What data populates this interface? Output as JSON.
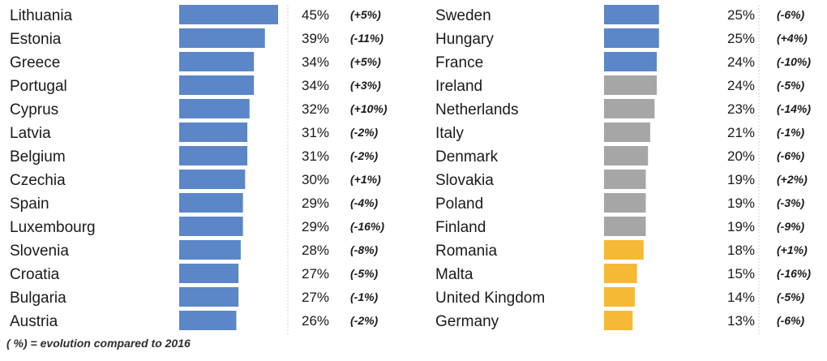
{
  "chart_data": {
    "type": "bar",
    "orientation": "horizontal",
    "colors": {
      "blue": "#5b87c9",
      "grey": "#a6a6a6",
      "orange": "#f6b935"
    },
    "xlim": [
      0,
      45
    ],
    "panels": [
      {
        "rows": [
          {
            "country": "Lithuania",
            "value": 45,
            "label": "45%",
            "evolution": "(+5%)",
            "color": "blue"
          },
          {
            "country": "Estonia",
            "value": 39,
            "label": "39%",
            "evolution": "(-11%)",
            "color": "blue"
          },
          {
            "country": "Greece",
            "value": 34,
            "label": "34%",
            "evolution": "(+5%)",
            "color": "blue"
          },
          {
            "country": "Portugal",
            "value": 34,
            "label": "34%",
            "evolution": "(+3%)",
            "color": "blue"
          },
          {
            "country": "Cyprus",
            "value": 32,
            "label": "32%",
            "evolution": "(+10%)",
            "color": "blue"
          },
          {
            "country": "Latvia",
            "value": 31,
            "label": "31%",
            "evolution": "(-2%)",
            "color": "blue"
          },
          {
            "country": "Belgium",
            "value": 31,
            "label": "31%",
            "evolution": "(-2%)",
            "color": "blue"
          },
          {
            "country": "Czechia",
            "value": 30,
            "label": "30%",
            "evolution": "(+1%)",
            "color": "blue"
          },
          {
            "country": "Spain",
            "value": 29,
            "label": "29%",
            "evolution": "(-4%)",
            "color": "blue"
          },
          {
            "country": "Luxembourg",
            "value": 29,
            "label": "29%",
            "evolution": "(-16%)",
            "color": "blue"
          },
          {
            "country": "Slovenia",
            "value": 28,
            "label": "28%",
            "evolution": "(-8%)",
            "color": "blue"
          },
          {
            "country": "Croatia",
            "value": 27,
            "label": "27%",
            "evolution": "(-5%)",
            "color": "blue"
          },
          {
            "country": "Bulgaria",
            "value": 27,
            "label": "27%",
            "evolution": "(-1%)",
            "color": "blue"
          },
          {
            "country": "Austria",
            "value": 26,
            "label": "26%",
            "evolution": "(-2%)",
            "color": "blue"
          }
        ]
      },
      {
        "rows": [
          {
            "country": "Sweden",
            "value": 25,
            "label": "25%",
            "evolution": "(-6%)",
            "color": "blue"
          },
          {
            "country": "Hungary",
            "value": 25,
            "label": "25%",
            "evolution": "(+4%)",
            "color": "blue"
          },
          {
            "country": "France",
            "value": 24,
            "label": "24%",
            "evolution": "(-10%)",
            "color": "blue"
          },
          {
            "country": "Ireland",
            "value": 24,
            "label": "24%",
            "evolution": "(-5%)",
            "color": "grey"
          },
          {
            "country": "Netherlands",
            "value": 23,
            "label": "23%",
            "evolution": "(-14%)",
            "color": "grey"
          },
          {
            "country": "Italy",
            "value": 21,
            "label": "21%",
            "evolution": "(-1%)",
            "color": "grey"
          },
          {
            "country": "Denmark",
            "value": 20,
            "label": "20%",
            "evolution": "(-6%)",
            "color": "grey"
          },
          {
            "country": "Slovakia",
            "value": 19,
            "label": "19%",
            "evolution": "(+2%)",
            "color": "grey"
          },
          {
            "country": "Poland",
            "value": 19,
            "label": "19%",
            "evolution": "(-3%)",
            "color": "grey"
          },
          {
            "country": "Finland",
            "value": 19,
            "label": "19%",
            "evolution": "(-9%)",
            "color": "grey"
          },
          {
            "country": "Romania",
            "value": 18,
            "label": "18%",
            "evolution": "(+1%)",
            "color": "orange"
          },
          {
            "country": "Malta",
            "value": 15,
            "label": "15%",
            "evolution": "(-16%)",
            "color": "orange"
          },
          {
            "country": "United Kingdom",
            "value": 14,
            "label": "14%",
            "evolution": "(-5%)",
            "color": "orange"
          },
          {
            "country": "Germany",
            "value": 13,
            "label": "13%",
            "evolution": "(-6%)",
            "color": "orange"
          }
        ]
      }
    ],
    "footnote": "( %) = evolution compared to 2016"
  }
}
